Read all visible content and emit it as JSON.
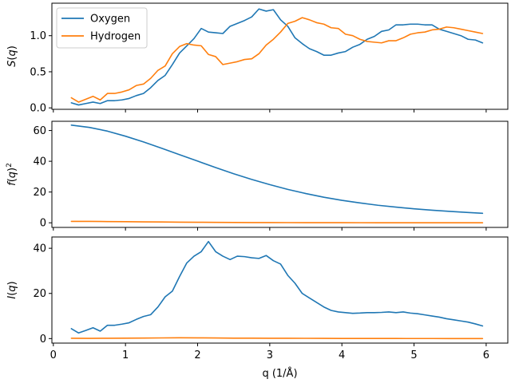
{
  "chart_data": {
    "type": "line",
    "xlabel": "q (1/Å)",
    "xlim": [
      -0.02,
      6.3
    ],
    "xticks": [
      0,
      1,
      2,
      3,
      4,
      5,
      6
    ],
    "x_ticklabels": [
      "0",
      "1",
      "2",
      "3",
      "4",
      "5",
      "6"
    ],
    "series_styles": [
      {
        "name": "Oxygen",
        "color": "#1f77b4"
      },
      {
        "name": "Hydrogen",
        "color": "#ff7f0e"
      }
    ],
    "legend": {
      "placement": "upper-left",
      "entries": [
        "Oxygen",
        "Hydrogen"
      ],
      "panel": 0
    },
    "panels": [
      {
        "ylabel": "S(q)",
        "ylim": [
          -0.02,
          1.45
        ],
        "yticks": [
          0.0,
          0.5,
          1.0
        ],
        "y_ticklabels": [
          "0.0",
          "0.5",
          "1.0"
        ],
        "show_x_ticklabels": false,
        "series": [
          {
            "name": "Oxygen",
            "x": [
              0.25,
              0.35,
              0.45,
              0.55,
              0.65,
              0.75,
              0.85,
              0.95,
              1.05,
              1.15,
              1.25,
              1.35,
              1.45,
              1.55,
              1.65,
              1.75,
              1.85,
              1.95,
              2.05,
              2.15,
              2.25,
              2.35,
              2.45,
              2.55,
              2.65,
              2.75,
              2.85,
              2.95,
              3.05,
              3.15,
              3.25,
              3.35,
              3.45,
              3.55,
              3.65,
              3.75,
              3.85,
              3.95,
              4.05,
              4.15,
              4.25,
              4.35,
              4.45,
              4.55,
              4.65,
              4.75,
              4.85,
              4.95,
              5.05,
              5.15,
              5.25,
              5.35,
              5.45,
              5.55,
              5.65,
              5.75,
              5.85,
              5.95
            ],
            "values": [
              0.07,
              0.04,
              0.06,
              0.08,
              0.06,
              0.1,
              0.1,
              0.11,
              0.13,
              0.17,
              0.2,
              0.28,
              0.38,
              0.45,
              0.6,
              0.76,
              0.86,
              0.96,
              1.1,
              1.05,
              1.04,
              1.03,
              1.13,
              1.17,
              1.21,
              1.26,
              1.37,
              1.34,
              1.36,
              1.22,
              1.13,
              0.97,
              0.89,
              0.82,
              0.78,
              0.73,
              0.73,
              0.76,
              0.78,
              0.84,
              0.88,
              0.95,
              0.99,
              1.06,
              1.08,
              1.15,
              1.15,
              1.16,
              1.16,
              1.15,
              1.15,
              1.09,
              1.06,
              1.03,
              1.0,
              0.95,
              0.94,
              0.9
            ]
          },
          {
            "name": "Hydrogen",
            "x": [
              0.25,
              0.35,
              0.45,
              0.55,
              0.65,
              0.75,
              0.85,
              0.95,
              1.05,
              1.15,
              1.25,
              1.35,
              1.45,
              1.55,
              1.65,
              1.75,
              1.85,
              1.95,
              2.05,
              2.15,
              2.25,
              2.35,
              2.45,
              2.55,
              2.65,
              2.75,
              2.85,
              2.95,
              3.05,
              3.15,
              3.25,
              3.35,
              3.45,
              3.55,
              3.65,
              3.75,
              3.85,
              3.95,
              4.05,
              4.15,
              4.25,
              4.35,
              4.45,
              4.55,
              4.65,
              4.75,
              4.85,
              4.95,
              5.05,
              5.15,
              5.25,
              5.35,
              5.45,
              5.55,
              5.65,
              5.75,
              5.85,
              5.95
            ],
            "values": [
              0.14,
              0.08,
              0.12,
              0.16,
              0.11,
              0.2,
              0.2,
              0.22,
              0.25,
              0.31,
              0.33,
              0.41,
              0.52,
              0.58,
              0.75,
              0.85,
              0.89,
              0.87,
              0.86,
              0.74,
              0.71,
              0.6,
              0.62,
              0.64,
              0.67,
              0.68,
              0.75,
              0.87,
              0.95,
              1.05,
              1.17,
              1.2,
              1.25,
              1.22,
              1.18,
              1.16,
              1.11,
              1.1,
              1.02,
              1.0,
              0.95,
              0.92,
              0.91,
              0.9,
              0.93,
              0.93,
              0.97,
              1.02,
              1.04,
              1.05,
              1.08,
              1.09,
              1.12,
              1.11,
              1.09,
              1.07,
              1.05,
              1.03
            ]
          }
        ]
      },
      {
        "ylabel": "f(q)^2",
        "ylim": [
          -3,
          66
        ],
        "yticks": [
          0,
          20,
          40,
          60
        ],
        "y_ticklabels": [
          "0",
          "20",
          "40",
          "60"
        ],
        "show_x_ticklabels": false,
        "series": [
          {
            "name": "Oxygen",
            "x": [
              0.25,
              0.5,
              0.75,
              1.0,
              1.25,
              1.5,
              1.75,
              2.0,
              2.25,
              2.5,
              2.75,
              3.0,
              3.25,
              3.5,
              3.75,
              4.0,
              4.25,
              4.5,
              4.75,
              5.0,
              5.25,
              5.5,
              5.75,
              5.95
            ],
            "values": [
              63.5,
              62.0,
              59.6,
              56.3,
              52.6,
              48.5,
              44.3,
              40.1,
              35.9,
              31.9,
              28.2,
              24.8,
              21.7,
              19.0,
              16.6,
              14.6,
              12.9,
              11.4,
              10.2,
              9.1,
              8.2,
              7.4,
              6.7,
              6.2
            ]
          },
          {
            "name": "Hydrogen",
            "x": [
              0.25,
              0.5,
              0.75,
              1.0,
              1.25,
              1.5,
              1.75,
              2.0,
              2.25,
              2.5,
              2.75,
              3.0,
              3.25,
              3.5,
              3.75,
              4.0,
              4.25,
              4.5,
              4.75,
              5.0,
              5.25,
              5.5,
              5.75,
              5.95
            ],
            "values": [
              0.95,
              0.9,
              0.82,
              0.72,
              0.62,
              0.52,
              0.43,
              0.35,
              0.28,
              0.22,
              0.17,
              0.14,
              0.11,
              0.09,
              0.07,
              0.06,
              0.05,
              0.04,
              0.03,
              0.03,
              0.02,
              0.02,
              0.02,
              0.01
            ]
          }
        ]
      },
      {
        "ylabel": "I(q)",
        "ylim": [
          -2,
          45
        ],
        "yticks": [
          0,
          20,
          40
        ],
        "y_ticklabels": [
          "0",
          "20",
          "40"
        ],
        "show_x_ticklabels": true,
        "series": [
          {
            "name": "Oxygen",
            "x": [
              0.25,
              0.35,
              0.45,
              0.55,
              0.65,
              0.75,
              0.85,
              0.95,
              1.05,
              1.15,
              1.25,
              1.35,
              1.45,
              1.55,
              1.65,
              1.75,
              1.85,
              1.95,
              2.05,
              2.15,
              2.25,
              2.35,
              2.45,
              2.55,
              2.65,
              2.75,
              2.85,
              2.95,
              3.05,
              3.15,
              3.25,
              3.35,
              3.45,
              3.55,
              3.65,
              3.75,
              3.85,
              3.95,
              4.05,
              4.15,
              4.25,
              4.35,
              4.45,
              4.55,
              4.65,
              4.75,
              4.85,
              4.95,
              5.05,
              5.15,
              5.25,
              5.35,
              5.45,
              5.55,
              5.65,
              5.75,
              5.85,
              5.95
            ],
            "values": [
              4.4,
              2.5,
              3.6,
              4.8,
              3.3,
              5.9,
              5.9,
              6.4,
              7.0,
              8.5,
              9.8,
              10.6,
              14.0,
              18.5,
              21.0,
              27.5,
              33.5,
              36.5,
              38.5,
              43.0,
              38.5,
              36.5,
              35.0,
              36.5,
              36.3,
              35.8,
              35.5,
              36.8,
              34.5,
              33.0,
              28.0,
              24.5,
              20.0,
              18.0,
              16.0,
              14.0,
              12.5,
              11.8,
              11.5,
              11.2,
              11.3,
              11.5,
              11.5,
              11.6,
              11.8,
              11.5,
              11.8,
              11.3,
              11.0,
              10.5,
              10.0,
              9.5,
              8.8,
              8.3,
              7.8,
              7.3,
              6.5,
              5.6
            ]
          },
          {
            "name": "Hydrogen",
            "x": [
              0.25,
              0.5,
              0.75,
              1.0,
              1.25,
              1.5,
              1.75,
              2.0,
              2.25,
              2.5,
              2.75,
              3.0,
              3.25,
              3.5,
              3.75,
              4.0,
              4.25,
              4.5,
              4.75,
              5.0,
              5.25,
              5.5,
              5.75,
              5.95
            ],
            "values": [
              0.15,
              0.1,
              0.14,
              0.18,
              0.22,
              0.3,
              0.36,
              0.33,
              0.26,
              0.2,
              0.18,
              0.16,
              0.15,
              0.12,
              0.1,
              0.07,
              0.06,
              0.05,
              0.04,
              0.03,
              0.03,
              0.02,
              0.02,
              0.01
            ]
          }
        ]
      }
    ]
  }
}
